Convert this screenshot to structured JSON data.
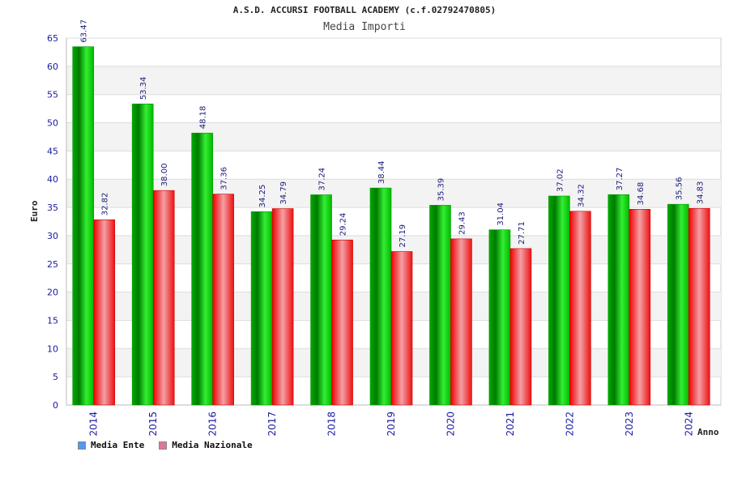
{
  "chart_data": {
    "type": "bar",
    "title": "A.S.D. ACCURSI FOOTBALL ACADEMY (c.f.02792470805)",
    "subtitle": "Media Importi",
    "xlabel": "Anno",
    "ylabel": "Euro",
    "ylim": [
      0,
      65
    ],
    "yticks": [
      "0",
      "5",
      "10",
      "15",
      "20",
      "25",
      "30",
      "35",
      "40",
      "45",
      "50",
      "55",
      "60",
      "65"
    ],
    "categories": [
      "2014",
      "2015",
      "2016",
      "2017",
      "2018",
      "2019",
      "2020",
      "2021",
      "2022",
      "2023",
      "2024"
    ],
    "series": [
      {
        "name": "Media Ente",
        "color": "#00cc00",
        "values": [
          63.47,
          53.34,
          48.18,
          34.25,
          37.24,
          38.44,
          35.39,
          31.04,
          37.02,
          37.27,
          35.56
        ],
        "labels": [
          "63.47",
          "53.34",
          "48.18",
          "34.25",
          "37.24",
          "38.44",
          "35.39",
          "31.04",
          "37.02",
          "37.27",
          "35.56"
        ]
      },
      {
        "name": "Media Nazionale",
        "color": "#ee1111",
        "values": [
          32.82,
          38.0,
          37.36,
          34.79,
          29.24,
          27.19,
          29.43,
          27.71,
          34.32,
          34.68,
          34.83
        ],
        "labels": [
          "32.82",
          "38.00",
          "37.36",
          "34.79",
          "29.24",
          "27.19",
          "29.43",
          "27.71",
          "34.32",
          "34.68",
          "34.83"
        ]
      }
    ],
    "grid": true,
    "legend_position": "bottom-left"
  },
  "legend": {
    "ente_swatch": "#5599ee",
    "nazionale_swatch": "#dd7799"
  }
}
